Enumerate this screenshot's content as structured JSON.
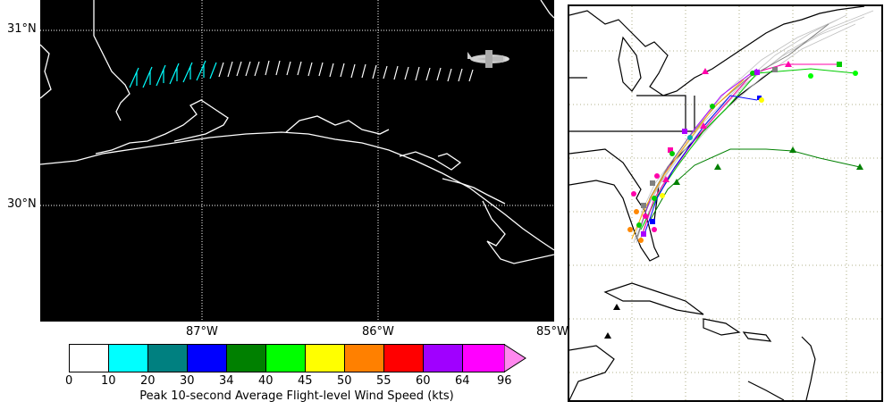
{
  "left_map": {
    "lat_labels": [
      "31°N",
      "30°N"
    ],
    "lon_labels": [
      "87°W",
      "86°W",
      "85°W"
    ],
    "aircraft_icon": "airplane-icon",
    "wind_barb_colors": {
      "cyan": "#00ffff",
      "white": "#ffffff"
    },
    "background": "#000000",
    "gridline_color": "#ffffff",
    "coastline_color": "#ffffff"
  },
  "colorbar": {
    "title": "Peak 10-second Average Flight-level Wind Speed (kts)",
    "ticks": [
      "0",
      "10",
      "20",
      "30",
      "34",
      "40",
      "45",
      "50",
      "55",
      "60",
      "64",
      "96"
    ],
    "colors": [
      "#ffffff",
      "#00ffff",
      "#008080",
      "#0000ff",
      "#008000",
      "#00ff00",
      "#ffff00",
      "#ff8000",
      "#ff0000",
      "#a000ff",
      "#ff00ff",
      "#ff88ee"
    ]
  },
  "right_map": {
    "track_colors": [
      "#00cc00",
      "#ff00aa",
      "#0000ff",
      "#808080",
      "#ffaa00",
      "#aa00ff",
      "#00aaaa",
      "#ff8800",
      "#c0c0c0"
    ],
    "land_outline_color": "#000000",
    "gridline_style": "dotted"
  }
}
